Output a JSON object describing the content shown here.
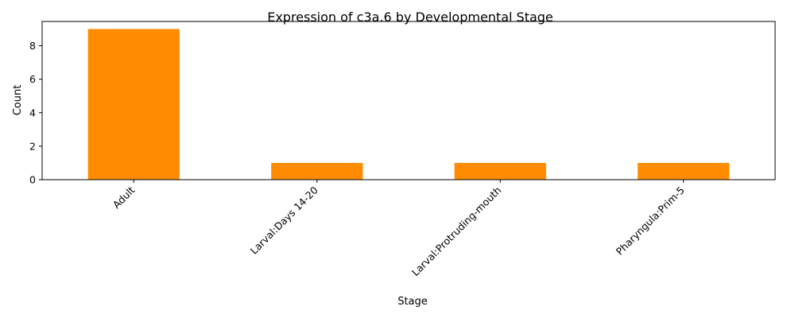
{
  "chart_data": {
    "type": "bar",
    "title": "Expression of c3a.6 by Developmental Stage",
    "xlabel": "Stage",
    "ylabel": "Count",
    "categories": [
      "Adult",
      "Larval:Days 14-20",
      "Larval:Protruding-mouth",
      "Pharyngula:Prim-5"
    ],
    "values": [
      9,
      1,
      1,
      1
    ],
    "ylim": [
      0,
      9.45
    ],
    "yticks": [
      0,
      2,
      4,
      6,
      8
    ],
    "grid": false,
    "bar_color": "#ff8c00"
  }
}
